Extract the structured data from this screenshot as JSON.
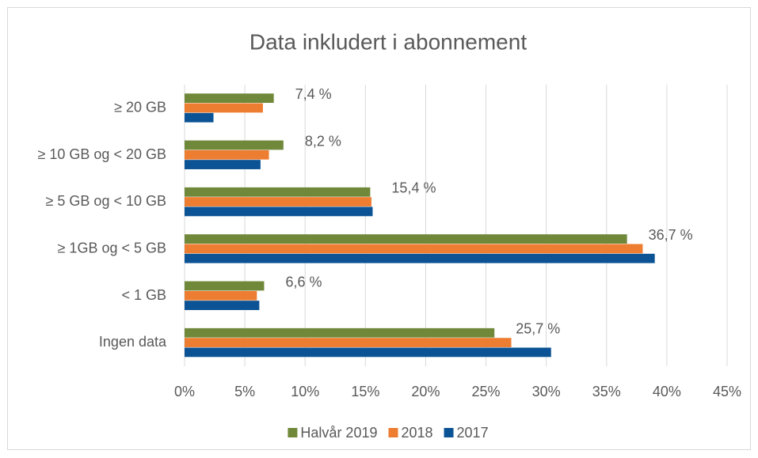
{
  "chart_data": {
    "type": "bar",
    "orientation": "horizontal",
    "title": "Data inkludert i abonnement",
    "categories": [
      "≥ 20 GB",
      "≥ 10 GB og < 20 GB",
      "≥ 5 GB og < 10 GB",
      "≥ 1GB og < 5 GB",
      "< 1 GB",
      "Ingen data"
    ],
    "series": [
      {
        "name": "Halvår 2019",
        "color": "#70883a",
        "values": [
          7.4,
          8.2,
          15.4,
          36.7,
          6.6,
          25.7
        ],
        "value_labels": [
          "7,4 %",
          "8,2 %",
          "15,4 %",
          "36,7 %",
          "6,6 %",
          "25,7 %"
        ]
      },
      {
        "name": "2018",
        "color": "#ed7d31",
        "values": [
          6.5,
          7.0,
          15.5,
          38.0,
          6.0,
          27.1
        ]
      },
      {
        "name": "2017",
        "color": "#0b5394",
        "values": [
          2.4,
          6.3,
          15.6,
          39.0,
          6.2,
          30.4
        ]
      }
    ],
    "xlim": [
      0,
      45
    ],
    "xticks": [
      {
        "value": 0,
        "label": "0%"
      },
      {
        "value": 5,
        "label": "5%"
      },
      {
        "value": 10,
        "label": "10%"
      },
      {
        "value": 15,
        "label": "15%"
      },
      {
        "value": 20,
        "label": "20%"
      },
      {
        "value": 25,
        "label": "25%"
      },
      {
        "value": 30,
        "label": "30%"
      },
      {
        "value": 35,
        "label": "35%"
      },
      {
        "value": 40,
        "label": "40%"
      },
      {
        "value": 45,
        "label": "45%"
      }
    ],
    "grid": true,
    "legend": "bottom"
  }
}
